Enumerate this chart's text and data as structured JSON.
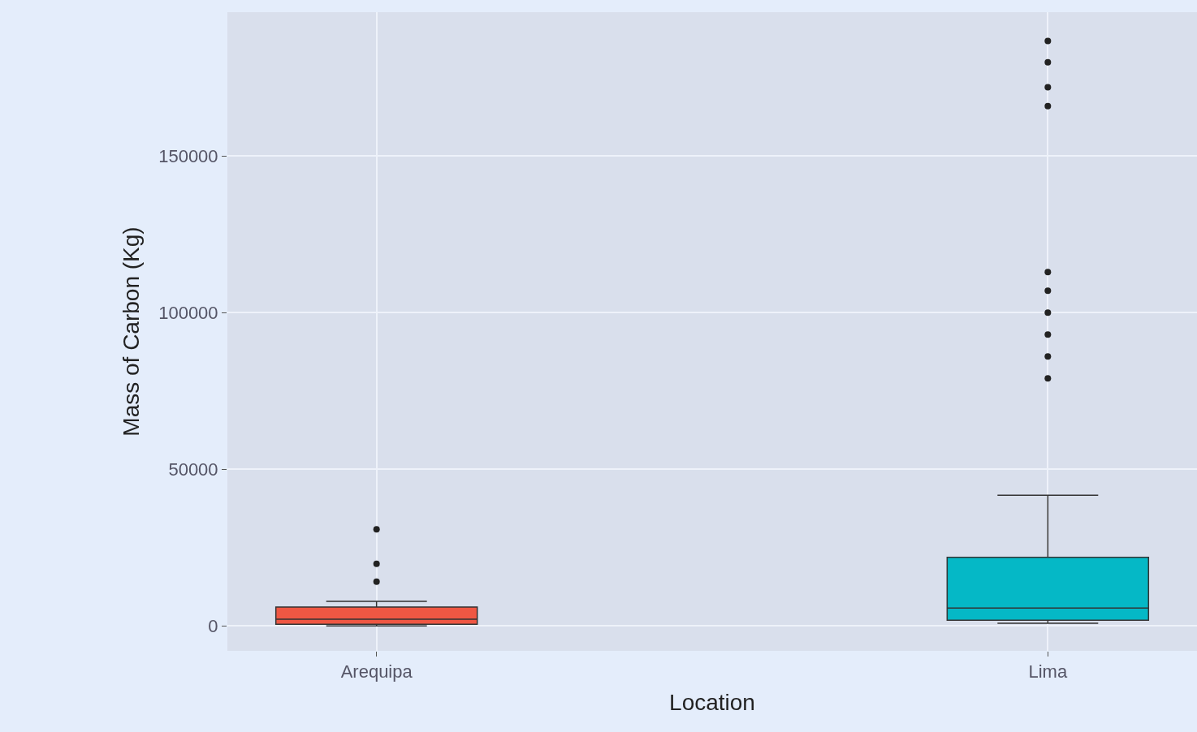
{
  "chart_data": {
    "type": "box",
    "xlabel": "Location",
    "ylabel": "Mass of Carbon (Kg)",
    "categories": [
      "Arequipa",
      "Lima"
    ],
    "colors": [
      "#ef5743",
      "#05b8c6"
    ],
    "boxes": [
      {
        "low": 0,
        "q1": 500,
        "median": 2100,
        "q3": 6000,
        "high": 7800,
        "outliers": [
          14100,
          19800,
          30800
        ]
      },
      {
        "low": 800,
        "q1": 1800,
        "median": 5700,
        "q3": 21900,
        "high": 41700,
        "outliers": [
          79000,
          86000,
          93000,
          100000,
          107000,
          113000,
          166000,
          172000,
          180000,
          186800
        ]
      }
    ],
    "ylim": [
      -8000,
      196000
    ],
    "yticks": [
      0,
      50000,
      100000,
      150000
    ],
    "grid": true
  }
}
